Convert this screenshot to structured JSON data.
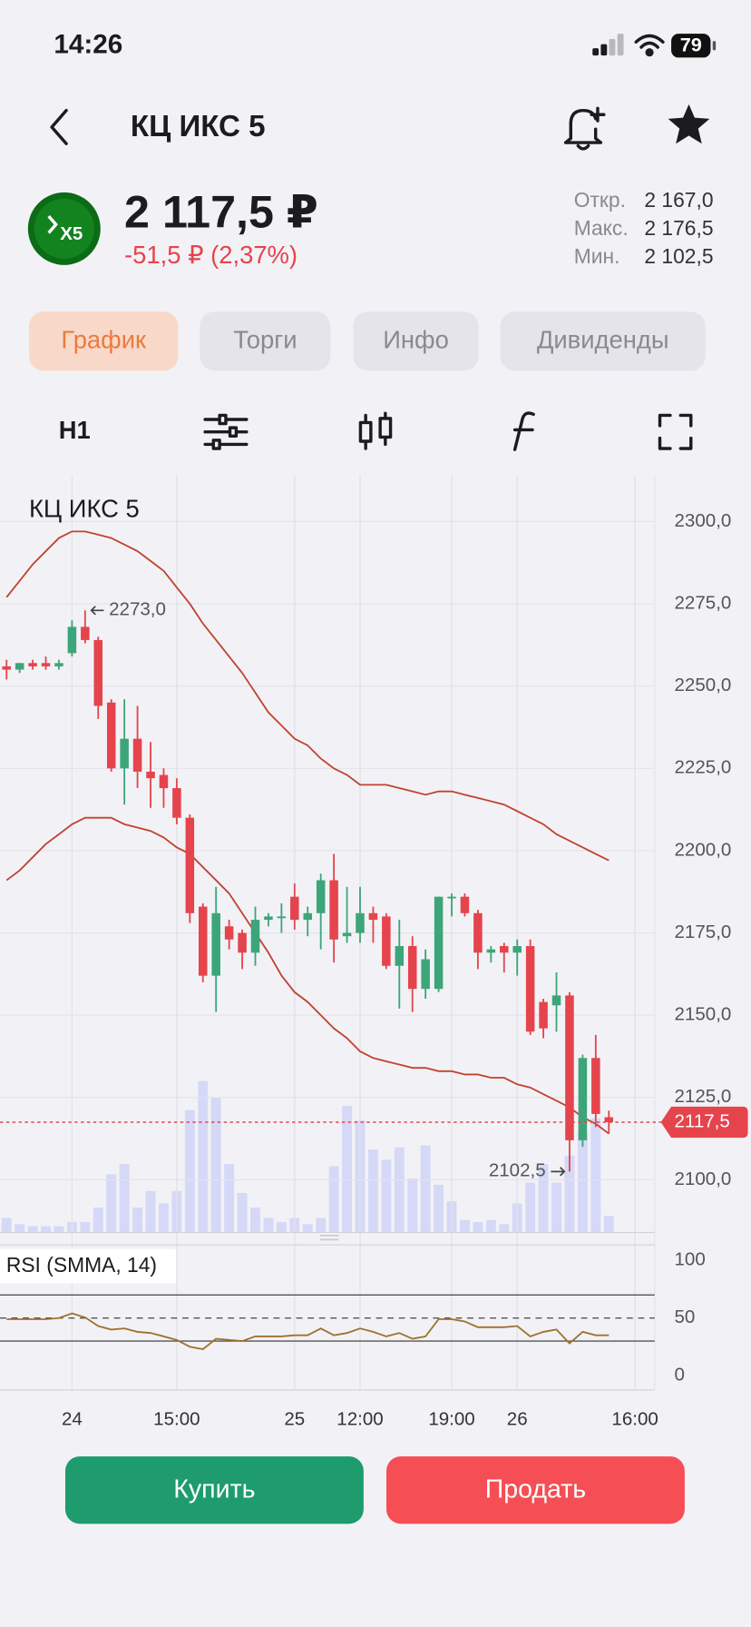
{
  "status_bar": {
    "time": "14:26",
    "battery": "79"
  },
  "header": {
    "title": "КЦ ИКС 5"
  },
  "quote": {
    "logo": "X5",
    "price": "2 117,5 ₽",
    "change": "-51,5 ₽ (2,37%)",
    "stats": [
      {
        "label": "Откр.",
        "value": "2 167,0"
      },
      {
        "label": "Макс.",
        "value": "2 176,5"
      },
      {
        "label": "Мин.",
        "value": "2 102,5"
      }
    ]
  },
  "tabs": [
    {
      "label": "График",
      "active": true
    },
    {
      "label": "Торги",
      "active": false
    },
    {
      "label": "Инфо",
      "active": false
    },
    {
      "label": "Дивиденды",
      "active": false
    }
  ],
  "toolbar": {
    "interval": "H1"
  },
  "chart_data": [
    {
      "type": "candlestick",
      "title": "КЦ ИКС 5",
      "categories": [
        null,
        null,
        null,
        null,
        null,
        "24",
        null,
        null,
        null,
        null,
        null,
        null,
        null,
        "15:00",
        null,
        null,
        null,
        null,
        null,
        null,
        null,
        null,
        "25",
        null,
        null,
        null,
        null,
        "12:00",
        null,
        null,
        null,
        null,
        null,
        null,
        "19:00",
        null,
        null,
        null,
        null,
        "26",
        null,
        null,
        null,
        null,
        null,
        null,
        null,
        null,
        "16:00",
        null
      ],
      "open": [
        2256,
        2255,
        2257,
        2257,
        2256,
        2260,
        2268,
        2264,
        2245,
        2225,
        2234,
        2224,
        2223,
        2219,
        2210,
        2183,
        2162,
        2177,
        2175,
        2169,
        2179,
        2180,
        2186,
        2179,
        2181,
        2191,
        2174,
        2175,
        2181,
        2180,
        2165,
        2171,
        2158,
        2158,
        2186,
        2186,
        2181,
        2169,
        2171,
        2169,
        2171,
        2154,
        2153,
        2156,
        2112,
        2137,
        2119,
        null,
        null,
        null
      ],
      "high": [
        2258,
        2257,
        2258,
        2259,
        2258,
        2270,
        2273,
        2265,
        2246,
        2246,
        2244,
        2233,
        2225,
        2222,
        2211,
        2184,
        2189,
        2179,
        2176,
        2183,
        2181,
        2184,
        2190,
        2183,
        2193,
        2199,
        2189,
        2189,
        2183,
        2181,
        2179,
        2174,
        2170,
        2186,
        2187,
        2187,
        2182,
        2171,
        2172,
        2173,
        2173,
        2155,
        2163,
        2157,
        2138,
        2144,
        2121,
        null,
        null,
        null
      ],
      "low": [
        2252,
        2254,
        2255,
        2255,
        2255,
        2259,
        2263,
        2240,
        2224,
        2214,
        2219,
        2213,
        2213,
        2208,
        2178,
        2160,
        2151,
        2170,
        2164,
        2165,
        2177,
        2175,
        2176,
        2174,
        2170,
        2166,
        2172,
        2172,
        2172,
        2164,
        2152,
        2151,
        2155,
        2157,
        2180,
        2180,
        2164,
        2166,
        2163,
        2162,
        2144,
        2143,
        2145,
        2102.5,
        2110,
        2116,
        2114,
        null,
        null,
        null
      ],
      "close": [
        2255,
        2257,
        2256,
        2256,
        2257,
        2268,
        2264,
        2244,
        2225,
        2234,
        2224,
        2222,
        2219,
        2210,
        2181,
        2162,
        2181,
        2173,
        2169,
        2179,
        2180,
        2180,
        2179,
        2181,
        2191,
        2173,
        2175,
        2181,
        2179,
        2165,
        2171,
        2158,
        2167,
        2186,
        2186,
        2181,
        2169,
        2170,
        2169,
        2171,
        2145,
        2146,
        2156,
        2112,
        2137,
        2120,
        2117.5,
        null,
        null,
        null
      ],
      "volumes": [
        14,
        8,
        6,
        6,
        6,
        10,
        10,
        24,
        56,
        66,
        24,
        40,
        28,
        40,
        118,
        146,
        130,
        66,
        38,
        24,
        14,
        10,
        14,
        8,
        14,
        64,
        122,
        108,
        80,
        70,
        82,
        52,
        84,
        46,
        30,
        12,
        10,
        12,
        8,
        28,
        48,
        66,
        48,
        74,
        96,
        110,
        16,
        null,
        null,
        null
      ],
      "upper_band": [
        2277,
        2282,
        2287,
        2291,
        2295,
        2297,
        2297,
        2296,
        2295,
        2293,
        2291,
        2288,
        2285,
        2280,
        2275,
        2269,
        2264,
        2259,
        2254,
        2248,
        2242,
        2238,
        2234,
        2232,
        2228,
        2225,
        2223,
        2220,
        2220,
        2220,
        2219,
        2218,
        2217,
        2218,
        2218,
        2217,
        2216,
        2215,
        2214,
        2212,
        2210,
        2208,
        2205,
        2203,
        2201,
        2199,
        2197,
        null,
        null,
        null
      ],
      "lower_band": [
        2191,
        2194,
        2198,
        2202,
        2205,
        2208,
        2210,
        2210,
        2210,
        2208,
        2207,
        2206,
        2204,
        2201,
        2199,
        2195,
        2191,
        2187,
        2181,
        2175,
        2169,
        2162,
        2157,
        2154,
        2150,
        2146,
        2143,
        2139,
        2137,
        2136,
        2135,
        2134,
        2134,
        2133,
        2133,
        2132,
        2132,
        2131,
        2131,
        2129,
        2128,
        2126,
        2124,
        2122,
        2119,
        2117,
        2114,
        null,
        null,
        null
      ],
      "up_color": "#3da57a",
      "down_color": "#e5444d",
      "volume_color": "#d5d9f7",
      "band_color": "#c1432f",
      "ylim": [
        2084,
        2314
      ],
      "yticks": [
        {
          "value": 2100,
          "label": "2100,0"
        },
        {
          "value": 2125,
          "label": "2125,0"
        },
        {
          "value": 2150,
          "label": "2150,0"
        },
        {
          "value": 2175,
          "label": "2175,0"
        },
        {
          "value": 2200,
          "label": "2200,0"
        },
        {
          "value": 2225,
          "label": "2225,0"
        },
        {
          "value": 2250,
          "label": "2250,0"
        },
        {
          "value": 2275,
          "label": "2275,0"
        },
        {
          "value": 2300,
          "label": "2300,0"
        }
      ],
      "grid": true,
      "last_price": {
        "value": 2117.5,
        "label": "2117,5"
      },
      "annotations": [
        {
          "value": 2273,
          "label": "2273,0"
        },
        {
          "value": 2102.5,
          "label": "2102,5"
        }
      ]
    },
    {
      "type": "line",
      "title": "RSI (SMMA, 14)",
      "values": [
        49,
        49,
        49,
        49,
        50,
        54,
        50.5,
        43,
        40,
        41,
        38,
        37,
        34,
        31,
        25,
        23,
        32,
        31,
        30,
        34,
        34,
        34,
        35,
        35,
        41,
        35,
        37,
        41,
        38,
        34,
        37,
        32,
        34,
        49,
        49,
        47,
        42,
        42,
        42,
        43,
        34,
        38,
        40,
        28,
        38,
        35,
        35,
        null,
        null,
        null
      ],
      "color": "#a0712f",
      "ylim": [
        -12.5,
        113.5
      ],
      "yticks": [
        0,
        50,
        100
      ],
      "levels": [
        {
          "value": 70,
          "style": "solid"
        },
        {
          "value": 50,
          "style": "dashed"
        },
        {
          "value": 30,
          "style": "solid"
        }
      ]
    }
  ],
  "buttons": {
    "buy": "Купить",
    "sell": "Продать"
  }
}
